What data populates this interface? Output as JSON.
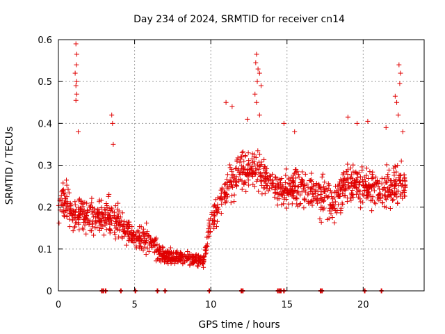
{
  "chart_data": {
    "type": "scatter",
    "title": "Day 234 of 2024, SRMTID for receiver cn14",
    "xlabel": "GPS time / hours",
    "ylabel": "SRMTID / TECUs",
    "xlim": [
      0,
      24
    ],
    "ylim": [
      0,
      0.6
    ],
    "xticks": [
      0,
      5,
      10,
      15,
      20
    ],
    "yticks": [
      0,
      0.1,
      0.2,
      0.3,
      0.4,
      0.5,
      0.6
    ],
    "xtick_labels": [
      "0",
      "5",
      "10",
      "15",
      "20"
    ],
    "ytick_labels": [
      "0",
      "0.1",
      "0.2",
      "0.3",
      "0.4",
      "0.5",
      "0.6"
    ],
    "grid": true,
    "marker": "plus",
    "color": "#e00000",
    "series": [
      {
        "name": "SRMTID",
        "profile": [
          {
            "t": 0.0,
            "mean": 0.2,
            "spread": 0.09
          },
          {
            "t": 0.5,
            "mean": 0.22,
            "spread": 0.09
          },
          {
            "t": 1.0,
            "mean": 0.17,
            "spread": 0.08
          },
          {
            "t": 1.5,
            "mean": 0.19,
            "spread": 0.07
          },
          {
            "t": 2.0,
            "mean": 0.17,
            "spread": 0.07
          },
          {
            "t": 3.0,
            "mean": 0.18,
            "spread": 0.07
          },
          {
            "t": 4.0,
            "mean": 0.16,
            "spread": 0.06
          },
          {
            "t": 5.0,
            "mean": 0.13,
            "spread": 0.05
          },
          {
            "t": 6.0,
            "mean": 0.12,
            "spread": 0.05
          },
          {
            "t": 7.0,
            "mean": 0.08,
            "spread": 0.03
          },
          {
            "t": 8.0,
            "mean": 0.08,
            "spread": 0.03
          },
          {
            "t": 9.5,
            "mean": 0.07,
            "spread": 0.03
          },
          {
            "t": 10.0,
            "mean": 0.16,
            "spread": 0.05
          },
          {
            "t": 11.0,
            "mean": 0.24,
            "spread": 0.07
          },
          {
            "t": 12.0,
            "mean": 0.29,
            "spread": 0.08
          },
          {
            "t": 13.0,
            "mean": 0.29,
            "spread": 0.08
          },
          {
            "t": 14.0,
            "mean": 0.25,
            "spread": 0.07
          },
          {
            "t": 15.0,
            "mean": 0.24,
            "spread": 0.08
          },
          {
            "t": 16.0,
            "mean": 0.25,
            "spread": 0.08
          },
          {
            "t": 17.0,
            "mean": 0.23,
            "spread": 0.08
          },
          {
            "t": 18.0,
            "mean": 0.21,
            "spread": 0.08
          },
          {
            "t": 19.0,
            "mean": 0.26,
            "spread": 0.08
          },
          {
            "t": 20.0,
            "mean": 0.25,
            "spread": 0.08
          },
          {
            "t": 21.0,
            "mean": 0.24,
            "spread": 0.08
          },
          {
            "t": 22.0,
            "mean": 0.25,
            "spread": 0.08
          },
          {
            "t": 22.8,
            "mean": 0.26,
            "spread": 0.08
          }
        ],
        "peaks": [
          {
            "x": 1.15,
            "y": 0.59
          },
          {
            "x": 1.2,
            "y": 0.565
          },
          {
            "x": 1.18,
            "y": 0.54
          },
          {
            "x": 1.1,
            "y": 0.52
          },
          {
            "x": 1.2,
            "y": 0.5
          },
          {
            "x": 1.15,
            "y": 0.49
          },
          {
            "x": 1.2,
            "y": 0.47
          },
          {
            "x": 1.15,
            "y": 0.455
          },
          {
            "x": 1.3,
            "y": 0.38
          },
          {
            "x": 3.5,
            "y": 0.42
          },
          {
            "x": 3.55,
            "y": 0.4
          },
          {
            "x": 3.6,
            "y": 0.35
          },
          {
            "x": 11.0,
            "y": 0.45
          },
          {
            "x": 11.4,
            "y": 0.44
          },
          {
            "x": 12.4,
            "y": 0.41
          },
          {
            "x": 13.0,
            "y": 0.565
          },
          {
            "x": 12.95,
            "y": 0.545
          },
          {
            "x": 13.1,
            "y": 0.53
          },
          {
            "x": 13.2,
            "y": 0.52
          },
          {
            "x": 13.05,
            "y": 0.5
          },
          {
            "x": 13.3,
            "y": 0.49
          },
          {
            "x": 12.9,
            "y": 0.47
          },
          {
            "x": 13.0,
            "y": 0.45
          },
          {
            "x": 13.2,
            "y": 0.42
          },
          {
            "x": 14.8,
            "y": 0.4
          },
          {
            "x": 15.5,
            "y": 0.38
          },
          {
            "x": 19.0,
            "y": 0.415
          },
          {
            "x": 19.6,
            "y": 0.4
          },
          {
            "x": 20.3,
            "y": 0.405
          },
          {
            "x": 21.5,
            "y": 0.39
          },
          {
            "x": 22.1,
            "y": 0.465
          },
          {
            "x": 22.2,
            "y": 0.45
          },
          {
            "x": 22.35,
            "y": 0.54
          },
          {
            "x": 22.45,
            "y": 0.52
          },
          {
            "x": 22.4,
            "y": 0.495
          },
          {
            "x": 22.3,
            "y": 0.42
          },
          {
            "x": 22.6,
            "y": 0.38
          }
        ],
        "zero_marks": [
          2.85,
          2.95,
          3.1,
          4.1,
          5.05,
          6.5,
          7.0,
          9.9,
          12.0,
          12.1,
          14.4,
          14.5,
          14.6,
          14.8,
          17.2,
          17.3,
          20.1,
          21.2
        ]
      }
    ]
  }
}
